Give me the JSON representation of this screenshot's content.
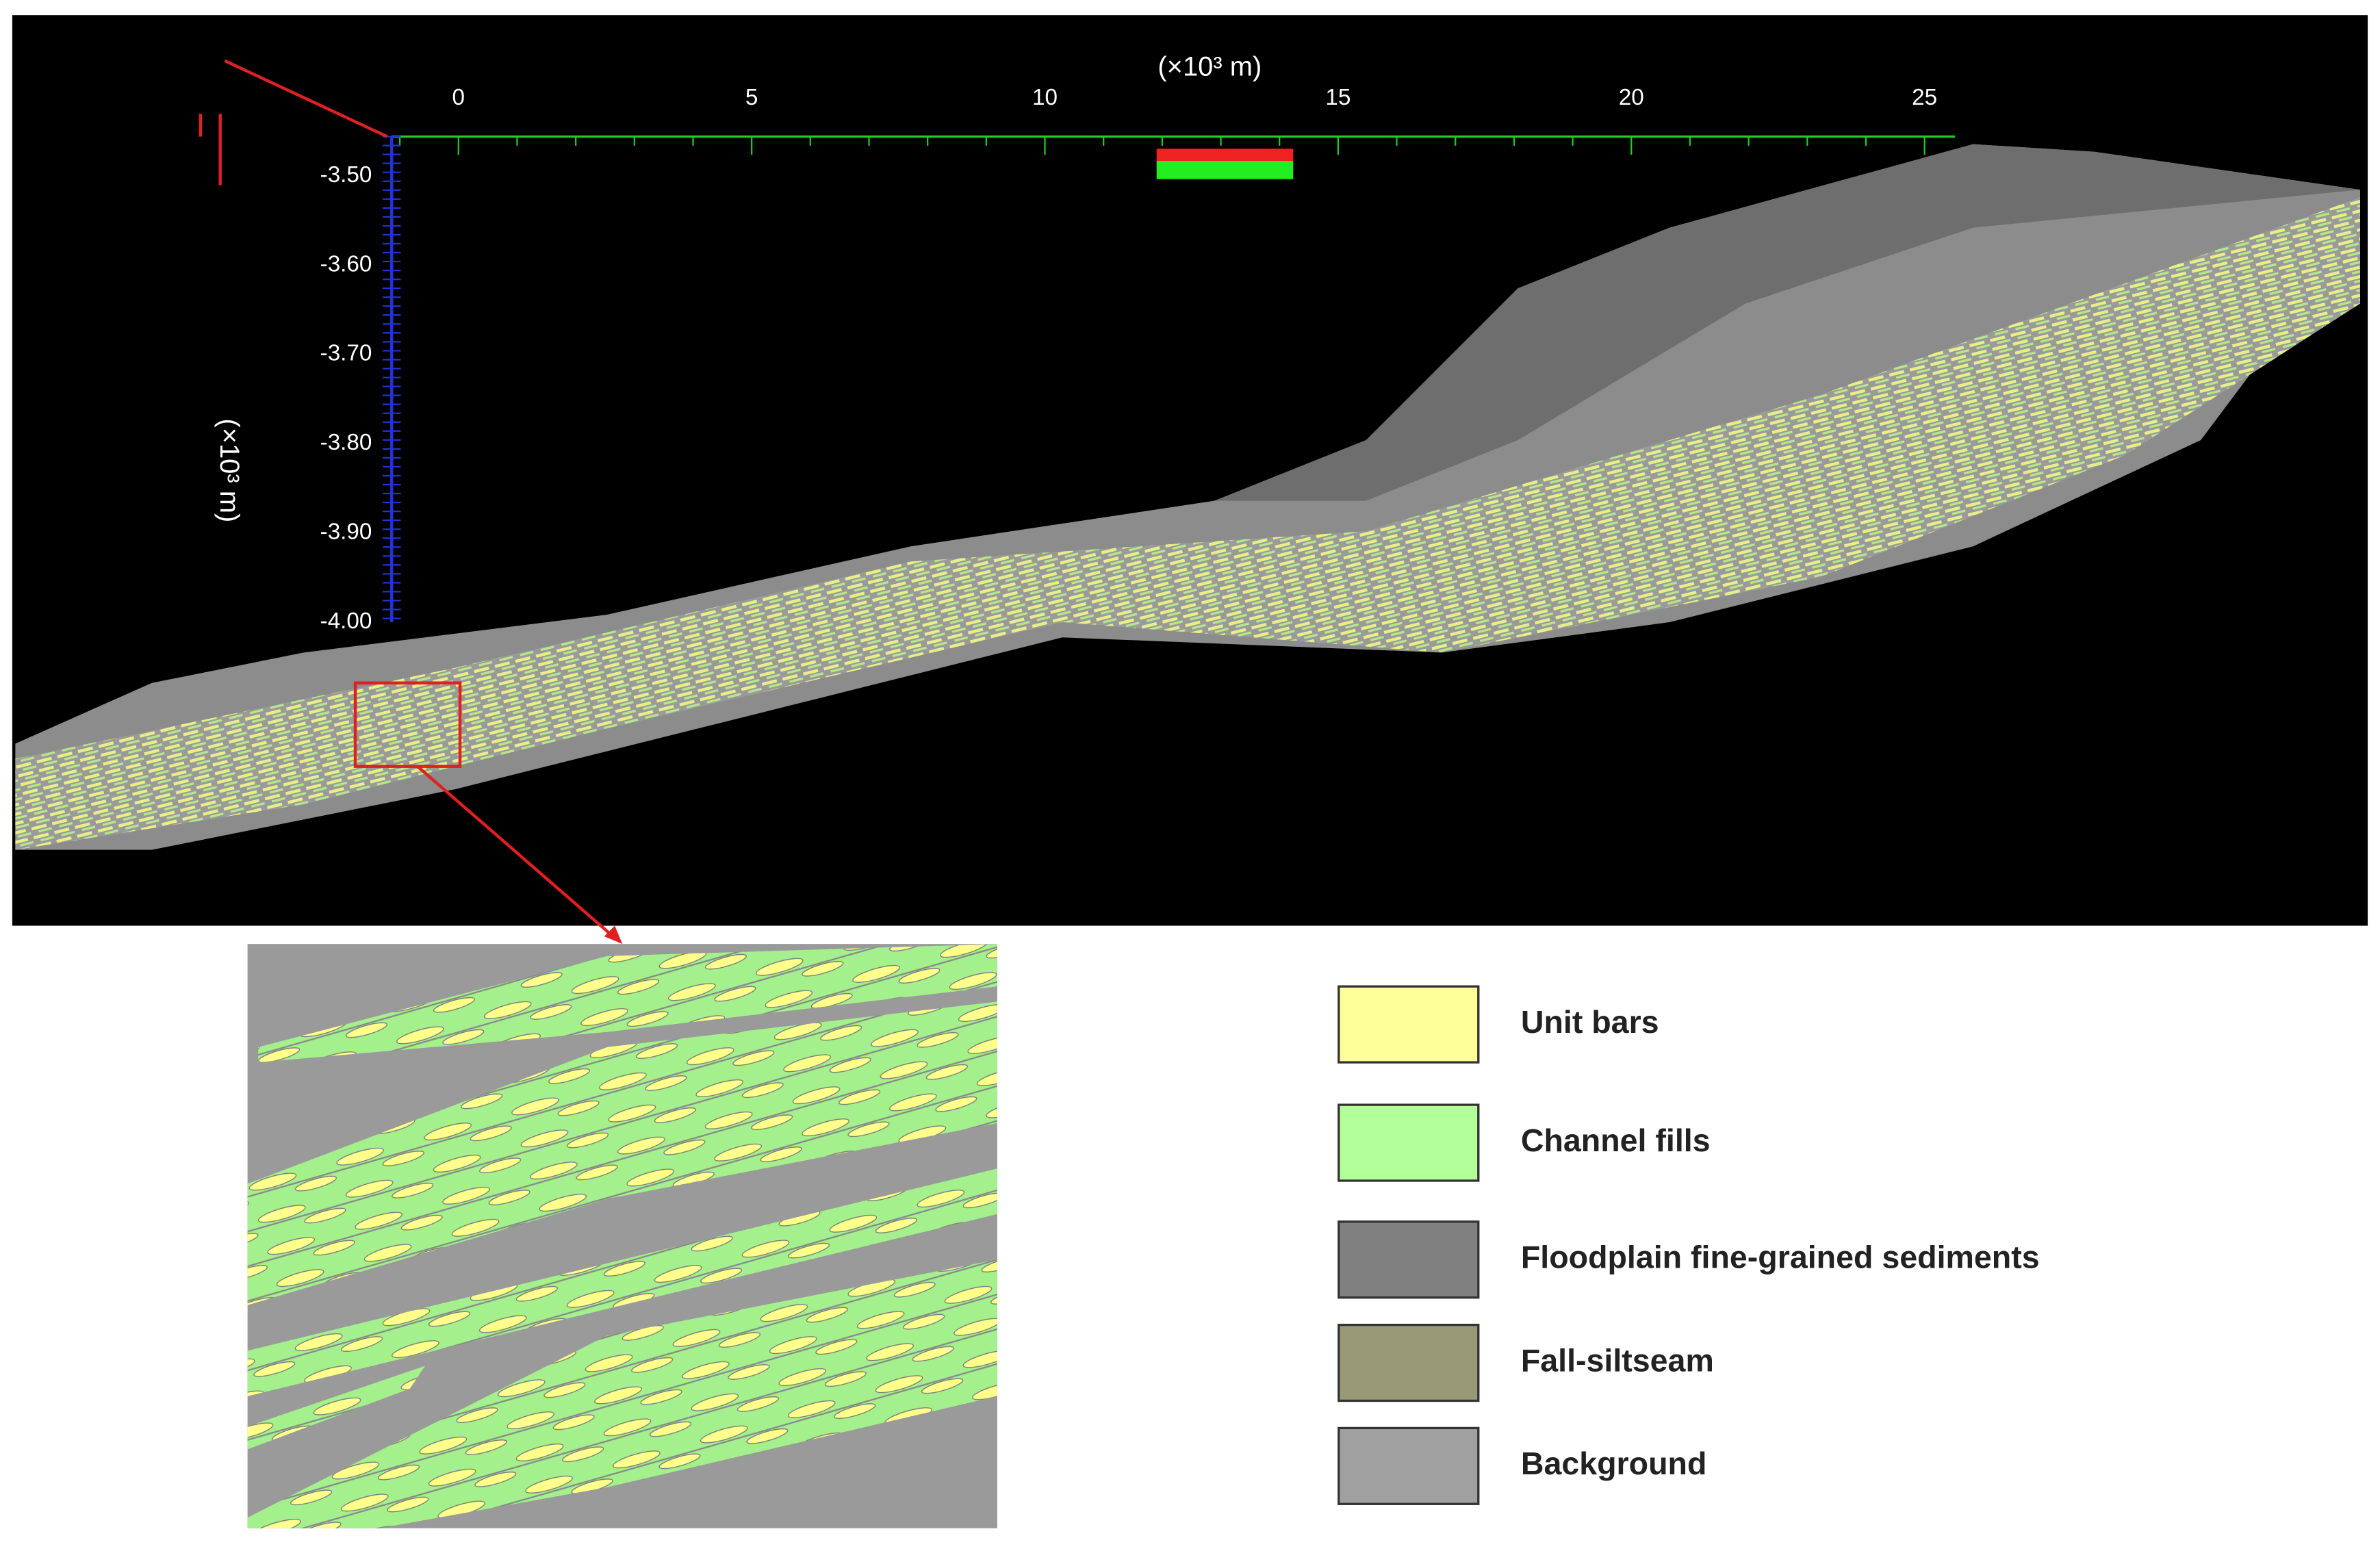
{
  "model_view": {
    "x_axis": {
      "unit_label": "(×10³ m)",
      "ticks": [
        "0",
        "5",
        "10",
        "15",
        "20",
        "25"
      ]
    },
    "z_axis": {
      "unit_label": "(×10³ m)",
      "ticks": [
        "-3.50",
        "-3.60",
        "-3.70",
        "-3.80",
        "-3.90",
        "-4.00"
      ]
    }
  },
  "legend": {
    "items": [
      {
        "label": "Unit bars",
        "color": "#ffff99"
      },
      {
        "label": "Channel fills",
        "color": "#b3ff99"
      },
      {
        "label": "Floodplain fine-grained sediments",
        "color": "#808080"
      },
      {
        "label": "Fall-siltseam",
        "color": "#999977"
      },
      {
        "label": "Background",
        "color": "#a0a0a0"
      }
    ]
  }
}
